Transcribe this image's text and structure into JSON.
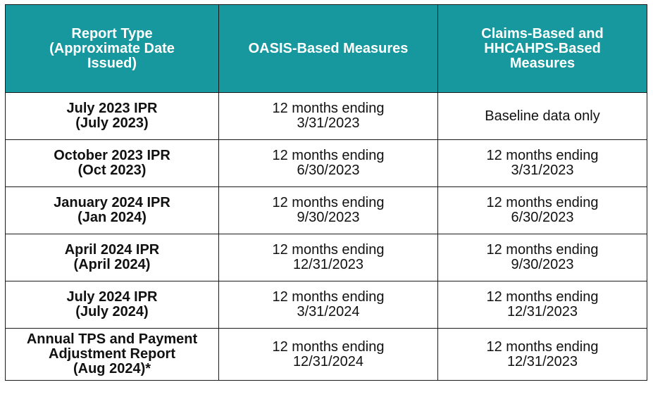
{
  "colors": {
    "header_bg": "#17989e",
    "header_text": "#ffffff",
    "border": "#1a1a1a",
    "body_text": "#111111"
  },
  "headers": [
    [
      "Report Type",
      "(Approximate Date",
      "Issued)"
    ],
    [
      "OASIS-Based Measures"
    ],
    [
      "Claims-Based and",
      "HHCAHPS-Based",
      "Measures"
    ]
  ],
  "rows": [
    {
      "report": [
        "July 2023 IPR",
        "(July 2023)"
      ],
      "oasis": [
        "12 months ending",
        "3/31/2023"
      ],
      "claims": [
        "Baseline data only"
      ]
    },
    {
      "report": [
        "October 2023 IPR",
        "(Oct 2023)"
      ],
      "oasis": [
        "12 months ending",
        "6/30/2023"
      ],
      "claims": [
        "12 months ending",
        "3/31/2023"
      ]
    },
    {
      "report": [
        "January 2024 IPR",
        "(Jan 2024)"
      ],
      "oasis": [
        "12 months ending",
        "9/30/2023"
      ],
      "claims": [
        "12 months ending",
        "6/30/2023"
      ]
    },
    {
      "report": [
        "April 2024 IPR",
        "(April 2024)"
      ],
      "oasis": [
        "12 months ending",
        "12/31/2023"
      ],
      "claims": [
        "12 months ending",
        "9/30/2023"
      ]
    },
    {
      "report": [
        "July 2024 IPR",
        "(July 2024)"
      ],
      "oasis": [
        "12 months ending",
        "3/31/2024"
      ],
      "claims": [
        "12 months ending",
        "12/31/2023"
      ]
    },
    {
      "report": [
        "Annual TPS and Payment",
        "Adjustment Report",
        "(Aug 2024)*"
      ],
      "oasis": [
        "12 months ending",
        "12/31/2024"
      ],
      "claims": [
        "12 months ending",
        "12/31/2023"
      ]
    }
  ]
}
